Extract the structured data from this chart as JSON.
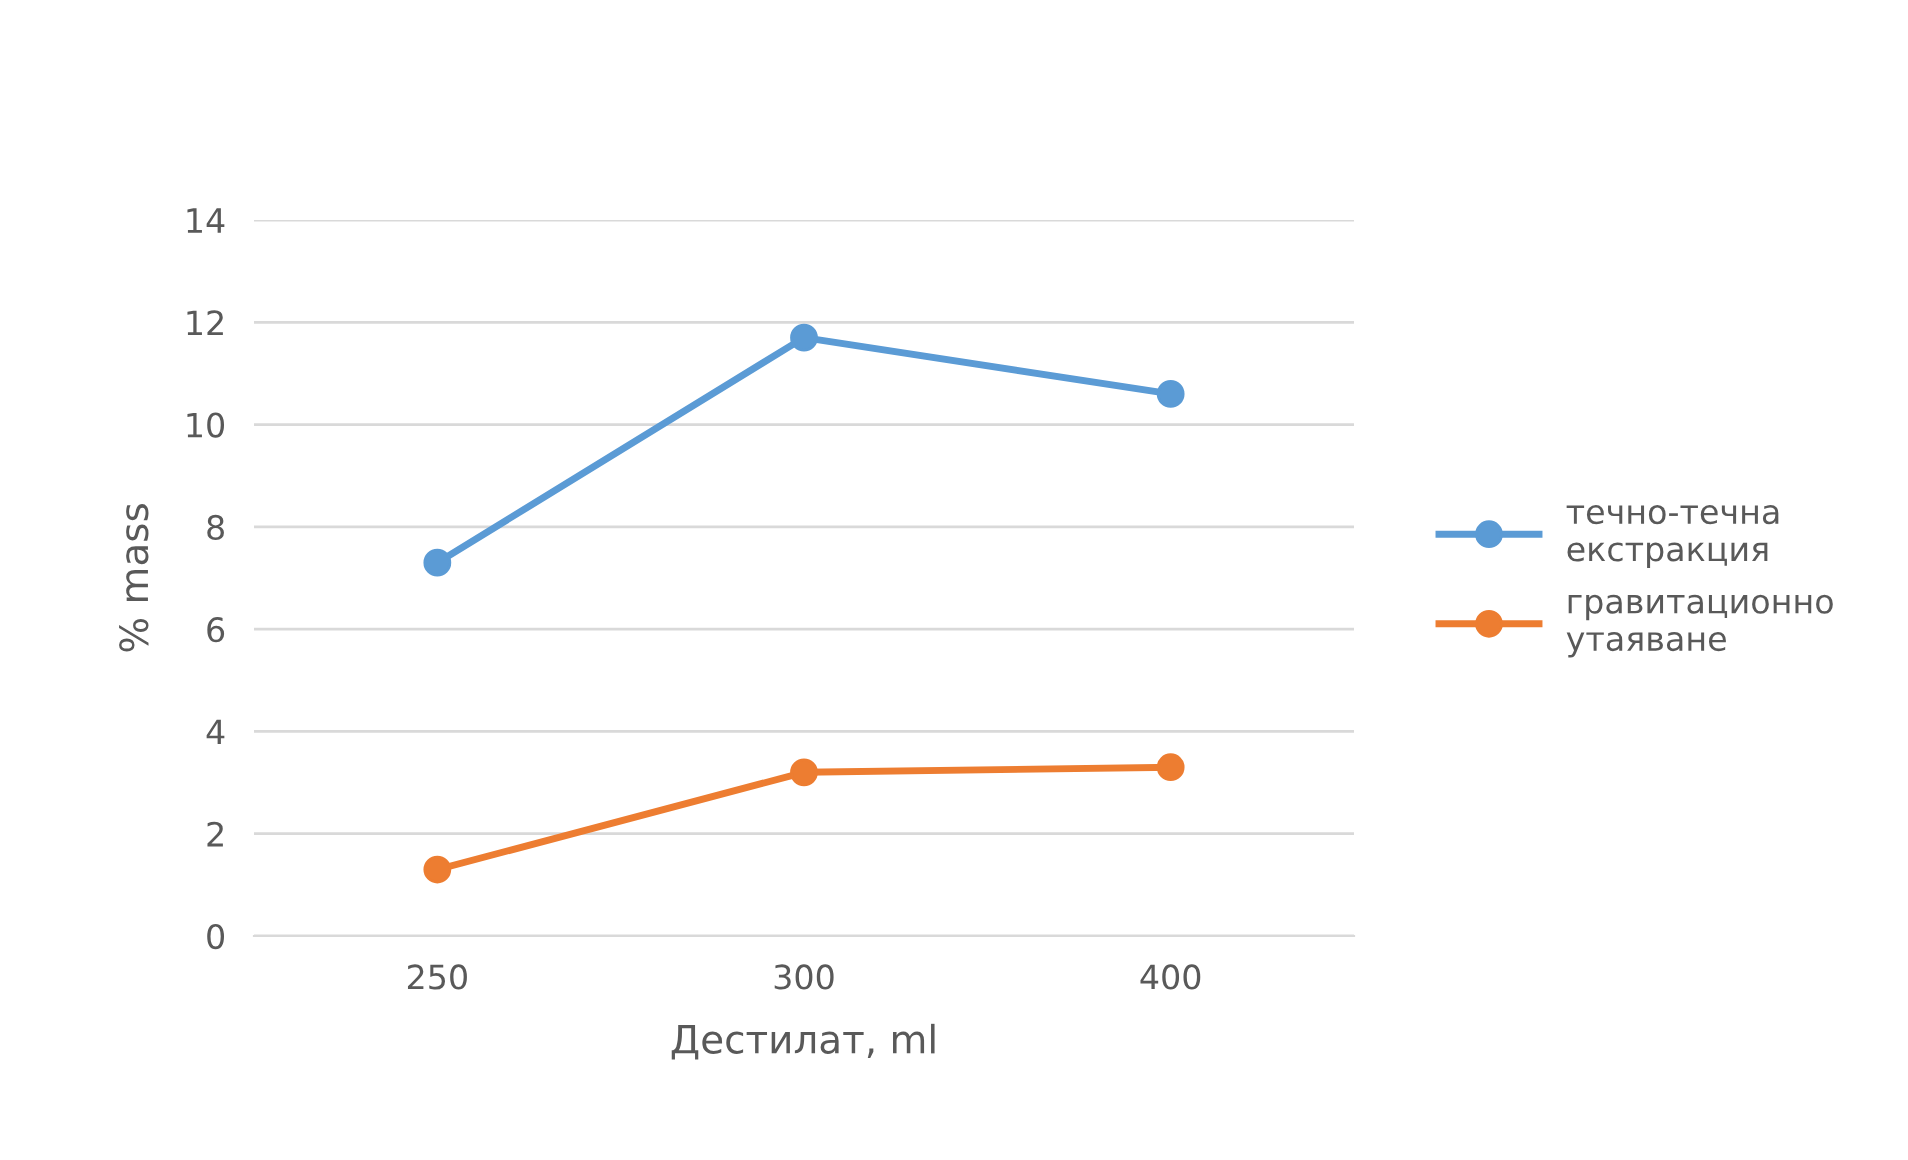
{
  "chart_data": {
    "type": "line",
    "xlabel": "Дестилат, ml",
    "ylabel": "% mass",
    "categories": [
      "250",
      "300",
      "400"
    ],
    "series": [
      {
        "name": "течно-течна екстракция",
        "color": "#5b9bd5",
        "values": [
          7.3,
          11.7,
          10.6
        ]
      },
      {
        "name": "гравитационно утаяване",
        "color": "#ed7d31",
        "values": [
          1.3,
          3.2,
          3.3
        ]
      }
    ],
    "ylim": [
      0,
      14
    ],
    "yticks": [
      0,
      2,
      4,
      6,
      8,
      10,
      12,
      14
    ],
    "grid": "y",
    "legend": "right",
    "marker": "circle",
    "line_style": "solid"
  }
}
